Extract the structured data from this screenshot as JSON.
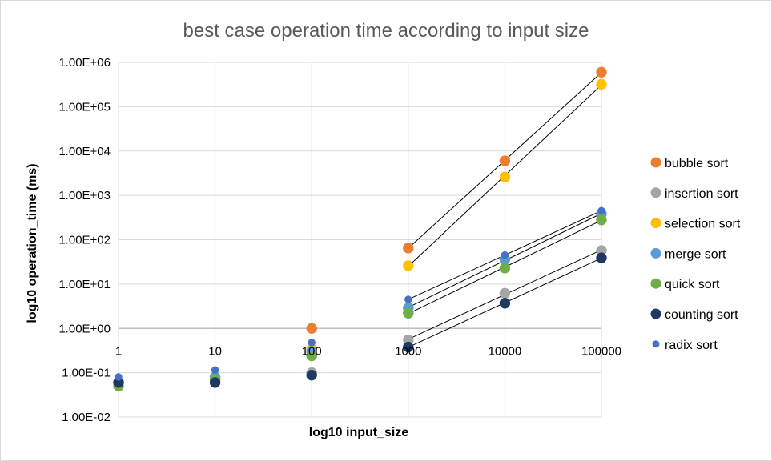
{
  "chart_data": {
    "type": "scatter",
    "title": "best case operation time according to input size",
    "xlabel": "log10 input_size",
    "ylabel": "log10 operation_time (ms)",
    "x_scale": "log",
    "y_scale": "log",
    "xlim": [
      1,
      100000
    ],
    "ylim": [
      0.01,
      1000000
    ],
    "x_ticks": [
      {
        "value": 1,
        "label": "1"
      },
      {
        "value": 10,
        "label": "10"
      },
      {
        "value": 100,
        "label": "100"
      },
      {
        "value": 1000,
        "label": "1000"
      },
      {
        "value": 10000,
        "label": "10000"
      },
      {
        "value": 100000,
        "label": "100000"
      }
    ],
    "y_ticks": [
      {
        "value": 0.01,
        "label": "1.00E-02"
      },
      {
        "value": 0.1,
        "label": "1.00E-01"
      },
      {
        "value": 1,
        "label": "1.00E+00"
      },
      {
        "value": 10,
        "label": "1.00E+01"
      },
      {
        "value": 100,
        "label": "1.00E+02"
      },
      {
        "value": 1000,
        "label": "1.00E+03"
      },
      {
        "value": 10000,
        "label": "1.00E+04"
      },
      {
        "value": 100000,
        "label": "1.00E+05"
      },
      {
        "value": 1000000,
        "label": "1.00E+06"
      }
    ],
    "grid": true,
    "legend_position": "right",
    "series": [
      {
        "name": "bubble sort",
        "color": "#ed7d31",
        "key": "bubble",
        "points": [
          [
            1,
            0.06
          ],
          [
            10,
            0.07
          ],
          [
            100,
            1.0
          ],
          [
            1000,
            65
          ],
          [
            10000,
            6000
          ],
          [
            100000,
            600000
          ]
        ],
        "trend_from": 1000
      },
      {
        "name": "insertion sort",
        "color": "#a5a5a5",
        "key": "insertion",
        "points": [
          [
            1,
            0.06
          ],
          [
            10,
            0.08
          ],
          [
            100,
            0.1
          ],
          [
            1000,
            0.55
          ],
          [
            10000,
            6.2
          ],
          [
            100000,
            57
          ]
        ],
        "trend_from": 1000
      },
      {
        "name": "selection sort",
        "color": "#ffc000",
        "key": "selection",
        "points": [
          [
            1,
            0.06
          ],
          [
            10,
            0.07
          ],
          [
            100,
            0.35
          ],
          [
            1000,
            26
          ],
          [
            10000,
            2600
          ],
          [
            100000,
            320000
          ]
        ],
        "trend_from": 1000
      },
      {
        "name": "merge sort",
        "color": "#5b9bd5",
        "key": "merge",
        "points": [
          [
            1,
            0.06
          ],
          [
            10,
            0.08
          ],
          [
            100,
            0.3
          ],
          [
            1000,
            2.9
          ],
          [
            10000,
            36
          ],
          [
            100000,
            380
          ]
        ],
        "trend_from": 1000
      },
      {
        "name": "quick sort",
        "color": "#70ad47",
        "key": "quick",
        "points": [
          [
            1,
            0.05
          ],
          [
            10,
            0.07
          ],
          [
            100,
            0.24
          ],
          [
            1000,
            2.2
          ],
          [
            10000,
            23
          ],
          [
            100000,
            280
          ]
        ],
        "trend_from": 1000
      },
      {
        "name": "counting sort",
        "color": "#1f3864",
        "key": "counting",
        "points": [
          [
            1,
            0.06
          ],
          [
            10,
            0.06
          ],
          [
            100,
            0.088
          ],
          [
            1000,
            0.38
          ],
          [
            10000,
            3.7
          ],
          [
            100000,
            39
          ]
        ],
        "trend_from": 1000
      },
      {
        "name": "radix sort",
        "color": "#4472c4",
        "key": "radix",
        "small": true,
        "points": [
          [
            1,
            0.08
          ],
          [
            10,
            0.115
          ],
          [
            100,
            0.48
          ],
          [
            1000,
            4.5
          ],
          [
            10000,
            45
          ],
          [
            100000,
            450
          ]
        ],
        "trend_from": 1000
      }
    ]
  }
}
